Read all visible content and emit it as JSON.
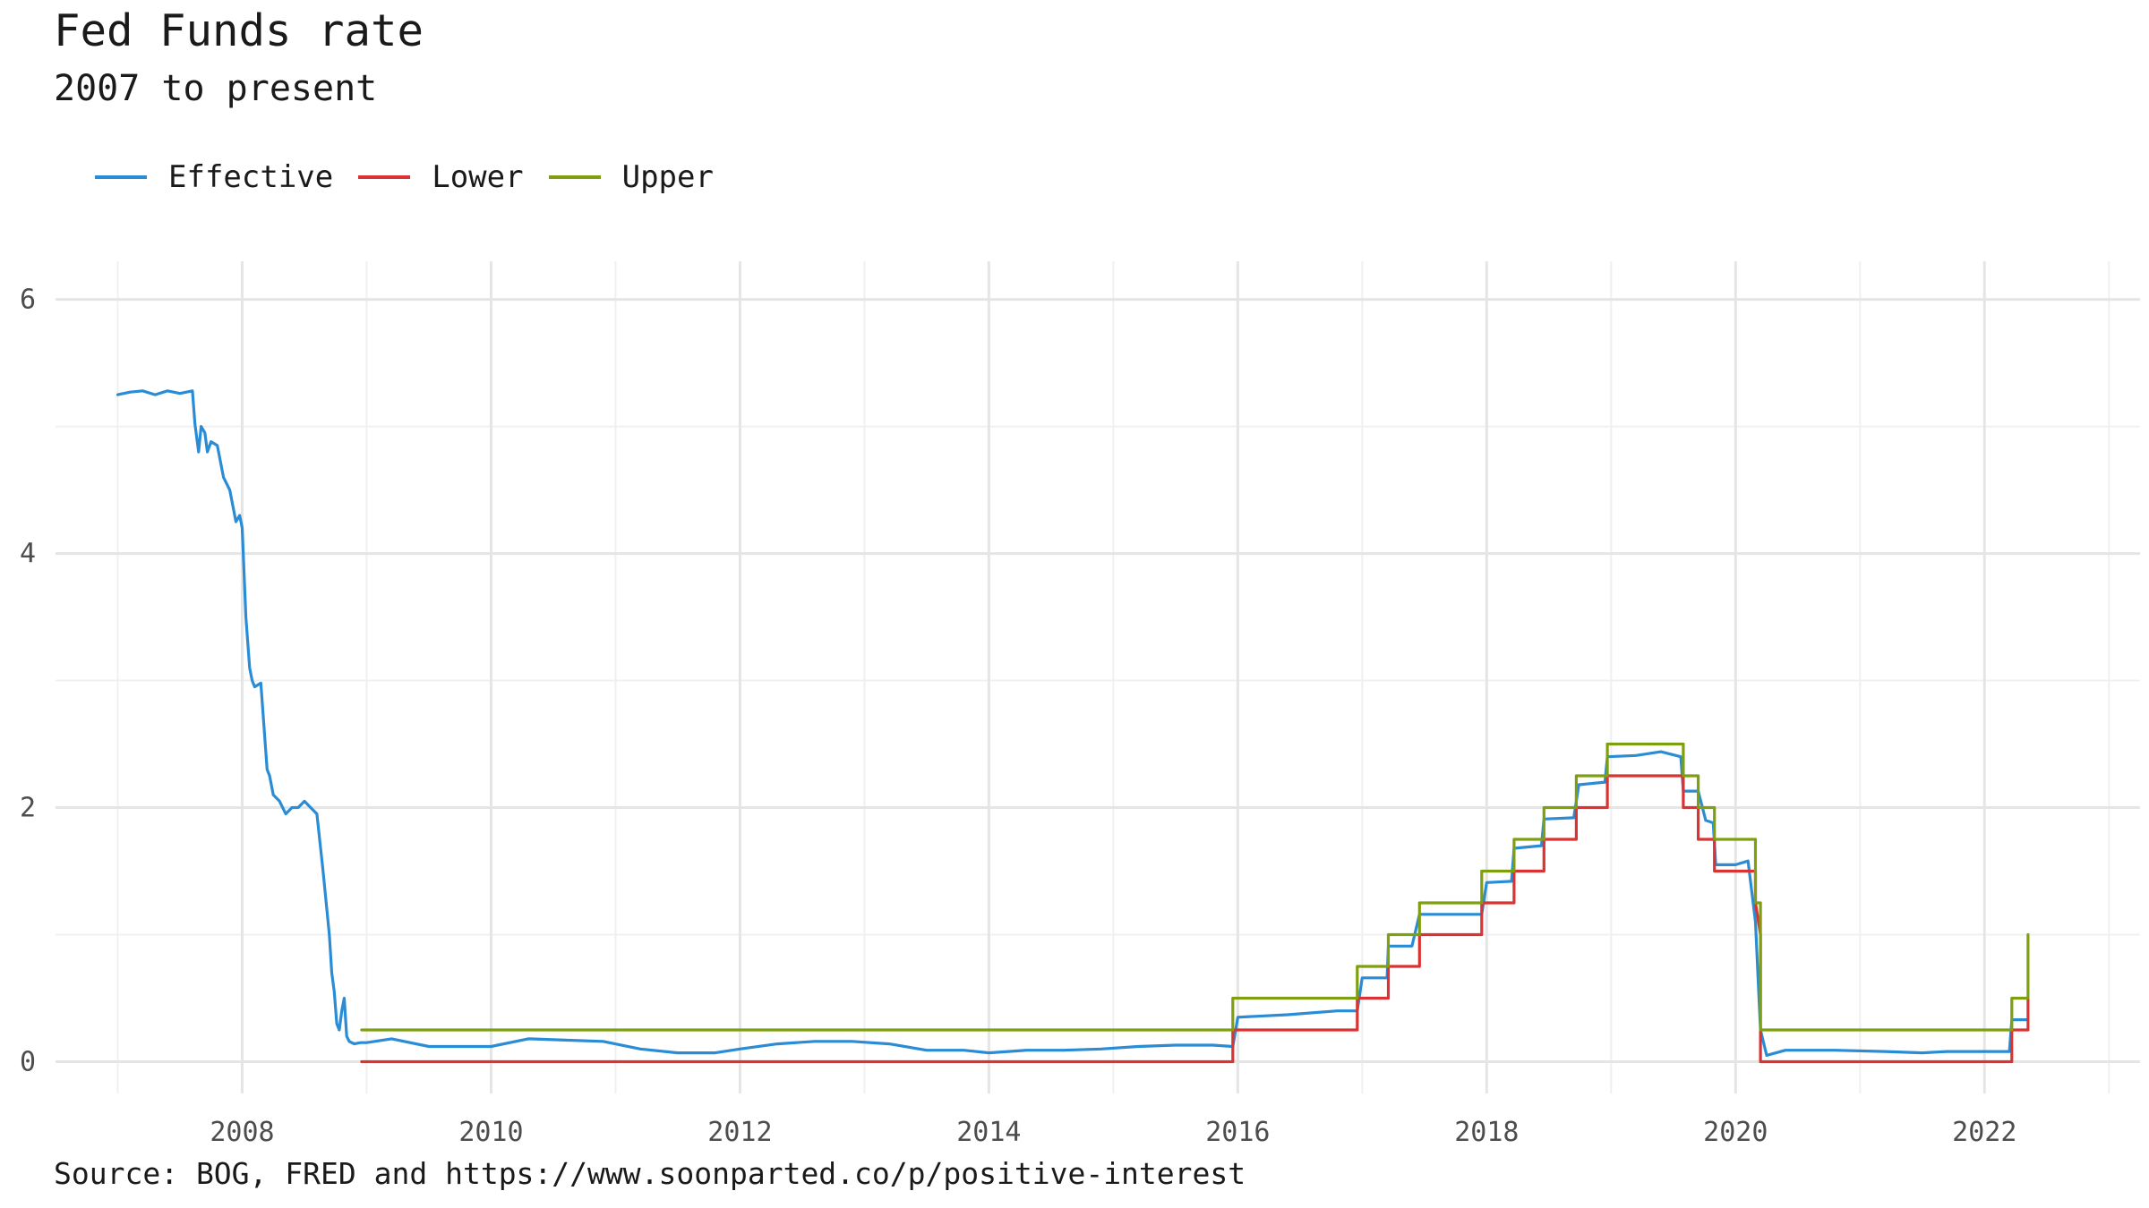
{
  "chart_data": {
    "type": "line",
    "title": "Fed Funds rate",
    "subtitle": "2007 to present",
    "caption": "Source: BOG, FRED and https://www.soonparted.co/p/positive-interest",
    "xlabel": "",
    "ylabel": "",
    "xlim": [
      2006.5,
      2023.25
    ],
    "ylim": [
      -0.25,
      6.3
    ],
    "x_ticks": [
      2008,
      2010,
      2012,
      2014,
      2016,
      2018,
      2020,
      2022
    ],
    "y_ticks": [
      0,
      2,
      4,
      6
    ],
    "grid": true,
    "legend_position": "top-left",
    "series": [
      {
        "name": "Effective",
        "color": "#2B8CD6",
        "x": [
          2007.0,
          2007.1,
          2007.2,
          2007.3,
          2007.4,
          2007.5,
          2007.6,
          2007.62,
          2007.65,
          2007.67,
          2007.7,
          2007.72,
          2007.75,
          2007.8,
          2007.85,
          2007.9,
          2007.95,
          2007.98,
          2008.0,
          2008.03,
          2008.06,
          2008.08,
          2008.1,
          2008.15,
          2008.2,
          2008.22,
          2008.25,
          2008.3,
          2008.35,
          2008.4,
          2008.45,
          2008.5,
          2008.55,
          2008.6,
          2008.65,
          2008.7,
          2008.72,
          2008.74,
          2008.76,
          2008.78,
          2008.8,
          2008.82,
          2008.84,
          2008.86,
          2008.9,
          2008.95,
          2009.0,
          2009.2,
          2009.5,
          2009.8,
          2010.0,
          2010.3,
          2010.6,
          2010.9,
          2011.2,
          2011.5,
          2011.8,
          2012.0,
          2012.3,
          2012.6,
          2012.9,
          2013.2,
          2013.5,
          2013.8,
          2014.0,
          2014.3,
          2014.6,
          2014.9,
          2015.2,
          2015.5,
          2015.8,
          2015.96,
          2016.0,
          2016.4,
          2016.8,
          2016.96,
          2017.0,
          2017.2,
          2017.21,
          2017.4,
          2017.46,
          2017.8,
          2017.96,
          2018.0,
          2018.2,
          2018.22,
          2018.44,
          2018.46,
          2018.7,
          2018.74,
          2018.95,
          2018.97,
          2019.2,
          2019.4,
          2019.56,
          2019.58,
          2019.7,
          2019.76,
          2019.82,
          2019.84,
          2020.0,
          2020.1,
          2020.16,
          2020.2,
          2020.25,
          2020.4,
          2020.8,
          2021.2,
          2021.5,
          2021.7,
          2022.0,
          2022.2,
          2022.22,
          2022.35
        ],
        "values": [
          5.25,
          5.27,
          5.28,
          5.25,
          5.28,
          5.26,
          5.28,
          5.02,
          4.8,
          5.0,
          4.95,
          4.8,
          4.88,
          4.85,
          4.6,
          4.5,
          4.25,
          4.3,
          4.2,
          3.5,
          3.1,
          3.0,
          2.95,
          2.98,
          2.3,
          2.25,
          2.1,
          2.05,
          1.95,
          2.0,
          2.0,
          2.05,
          2.0,
          1.95,
          1.5,
          1.0,
          0.7,
          0.55,
          0.3,
          0.25,
          0.4,
          0.5,
          0.2,
          0.16,
          0.14,
          0.15,
          0.15,
          0.18,
          0.12,
          0.12,
          0.12,
          0.18,
          0.17,
          0.16,
          0.1,
          0.07,
          0.07,
          0.1,
          0.14,
          0.16,
          0.16,
          0.14,
          0.09,
          0.09,
          0.07,
          0.09,
          0.09,
          0.1,
          0.12,
          0.13,
          0.13,
          0.12,
          0.35,
          0.37,
          0.4,
          0.4,
          0.66,
          0.66,
          0.91,
          0.91,
          1.16,
          1.16,
          1.16,
          1.41,
          1.42,
          1.68,
          1.7,
          1.91,
          1.92,
          2.18,
          2.2,
          2.4,
          2.41,
          2.44,
          2.4,
          2.13,
          2.13,
          1.9,
          1.88,
          1.55,
          1.55,
          1.58,
          1.1,
          0.25,
          0.05,
          0.09,
          0.09,
          0.08,
          0.07,
          0.08,
          0.08,
          0.08,
          0.33,
          0.33
        ]
      },
      {
        "name": "Lower",
        "color": "#D93333",
        "x": [
          2008.96,
          2015.96,
          2015.96,
          2016.96,
          2016.96,
          2017.21,
          2017.21,
          2017.46,
          2017.46,
          2017.96,
          2017.96,
          2018.22,
          2018.22,
          2018.46,
          2018.46,
          2018.72,
          2018.72,
          2018.97,
          2018.97,
          2019.58,
          2019.58,
          2019.7,
          2019.7,
          2019.83,
          2019.83,
          2020.16,
          2020.16,
          2020.2,
          2020.2,
          2022.22,
          2022.22,
          2022.35,
          2022.35
        ],
        "values": [
          0,
          0,
          0.25,
          0.25,
          0.5,
          0.5,
          0.75,
          0.75,
          1.0,
          1.0,
          1.25,
          1.25,
          1.5,
          1.5,
          1.75,
          1.75,
          2.0,
          2.0,
          2.25,
          2.25,
          2.0,
          2.0,
          1.75,
          1.75,
          1.5,
          1.5,
          1.25,
          1.0,
          0,
          0,
          0.25,
          0.25,
          0.5
        ]
      },
      {
        "name": "Upper",
        "color": "#7F9F10",
        "x": [
          2008.96,
          2015.96,
          2015.96,
          2016.96,
          2016.96,
          2017.21,
          2017.21,
          2017.46,
          2017.46,
          2017.96,
          2017.96,
          2018.22,
          2018.22,
          2018.46,
          2018.46,
          2018.72,
          2018.72,
          2018.97,
          2018.97,
          2019.58,
          2019.58,
          2019.7,
          2019.7,
          2019.83,
          2019.83,
          2020.16,
          2020.16,
          2020.2,
          2020.2,
          2022.22,
          2022.22,
          2022.35,
          2022.35
        ],
        "values": [
          0.25,
          0.25,
          0.5,
          0.5,
          0.75,
          0.75,
          1.0,
          1.0,
          1.25,
          1.25,
          1.5,
          1.5,
          1.75,
          1.75,
          2.0,
          2.0,
          2.25,
          2.25,
          2.5,
          2.5,
          2.25,
          2.25,
          2.0,
          2.0,
          1.75,
          1.75,
          1.25,
          1.25,
          0.25,
          0.25,
          0.5,
          0.5,
          1.0
        ]
      }
    ]
  }
}
